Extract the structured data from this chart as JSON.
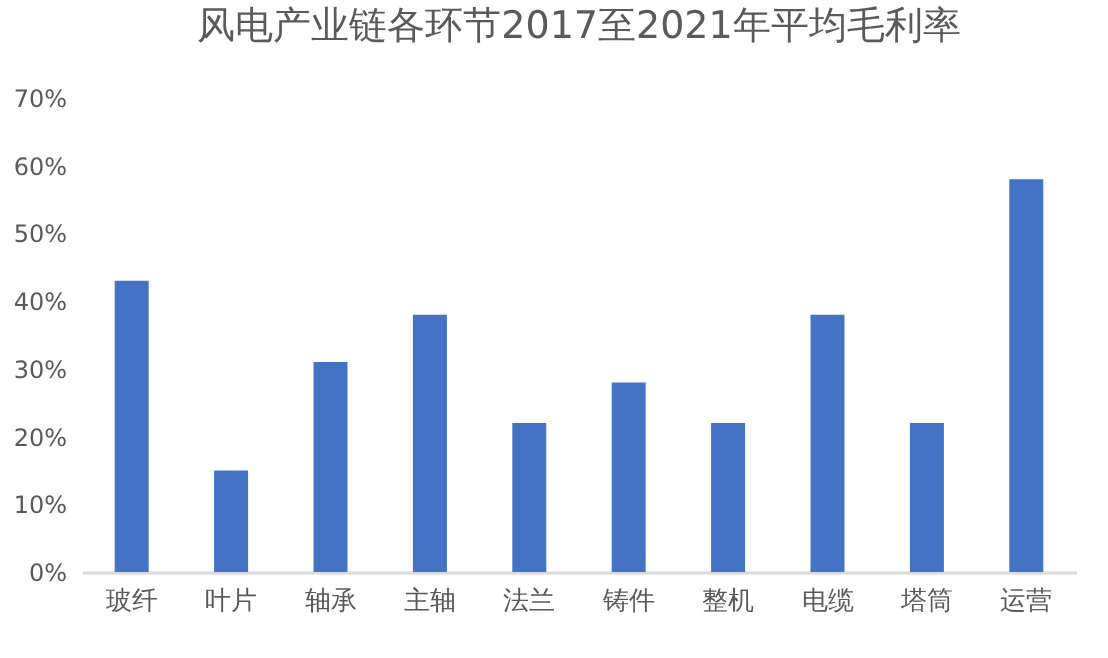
{
  "chart_data": {
    "type": "bar",
    "title": "风电产业链各环节2017至2021年平均毛利率",
    "categories": [
      "玻纤",
      "叶片",
      "轴承",
      "主轴",
      "法兰",
      "铸件",
      "整机",
      "电缆",
      "塔筒",
      "运营"
    ],
    "values": [
      43,
      15,
      31,
      38,
      22,
      28,
      22,
      38,
      22,
      58
    ],
    "color": "#4472c4",
    "ylim": [
      0,
      70
    ],
    "yticks": [
      {
        "value": 0,
        "label": "0%"
      },
      {
        "value": 10,
        "label": "10%"
      },
      {
        "value": 20,
        "label": "20%"
      },
      {
        "value": 30,
        "label": "30%"
      },
      {
        "value": 40,
        "label": "40%"
      },
      {
        "value": 50,
        "label": "50%"
      },
      {
        "value": 60,
        "label": "60%"
      },
      {
        "value": 70,
        "label": "70%"
      }
    ],
    "grid": false
  }
}
